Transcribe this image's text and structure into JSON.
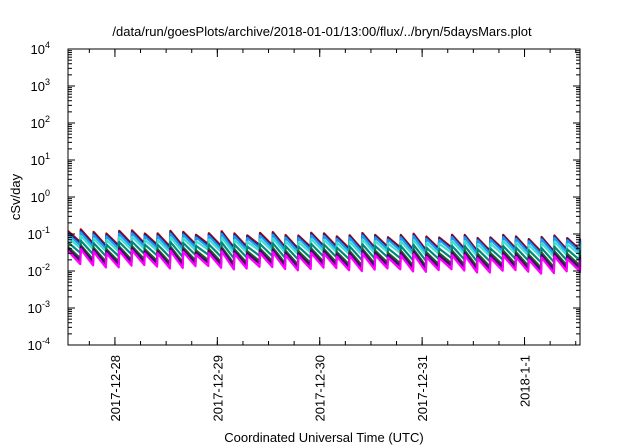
{
  "chart_data": {
    "type": "line",
    "title": "/data/run/goesPlots/archive/2018-01-01/13:00/flux/../bryn/5daysMars.plot",
    "xlabel": "Coordinated Universal Time (UTC)",
    "ylabel": "cSv/day",
    "yscale": "log",
    "ylim": [
      0.0001,
      10000
    ],
    "y_ticks": [
      {
        "base": "10",
        "exp": "-4"
      },
      {
        "base": "10",
        "exp": "-3"
      },
      {
        "base": "10",
        "exp": "-2"
      },
      {
        "base": "10",
        "exp": "-1"
      },
      {
        "base": "10",
        "exp": "0"
      },
      {
        "base": "10",
        "exp": "1"
      },
      {
        "base": "10",
        "exp": "2"
      },
      {
        "base": "10",
        "exp": "3"
      },
      {
        "base": "10",
        "exp": "4"
      }
    ],
    "xlim": [
      "2017-12-27 13:00",
      "2018-01-01 13:00"
    ],
    "x_ticks": [
      "2017-12-28",
      "2017-12-29",
      "2017-12-30",
      "2017-12-31",
      "2018-1-1"
    ],
    "grid": false,
    "legend": "none",
    "sawtooth_period_hours": 3,
    "series": [
      {
        "color": "#b00000",
        "high_start": 0.12,
        "high_end": 0.08,
        "low_start": 0.055,
        "low_end": 0.035
      },
      {
        "color": "#1a237e",
        "high_start": 0.11,
        "high_end": 0.075,
        "low_start": 0.05,
        "low_end": 0.032
      },
      {
        "color": "#2196f3",
        "high_start": 0.1,
        "high_end": 0.07,
        "low_start": 0.045,
        "low_end": 0.03
      },
      {
        "color": "#40e0d0",
        "high_start": 0.08,
        "high_end": 0.055,
        "low_start": 0.038,
        "low_end": 0.025
      },
      {
        "color": "#00897b",
        "high_start": 0.06,
        "high_end": 0.04,
        "low_start": 0.028,
        "low_end": 0.018
      },
      {
        "color": "#1b5e20",
        "high_start": 0.045,
        "high_end": 0.03,
        "low_start": 0.02,
        "low_end": 0.013
      },
      {
        "color": "#4a0072",
        "high_start": 0.04,
        "high_end": 0.026,
        "low_start": 0.017,
        "low_end": 0.011
      },
      {
        "color": "#ff00ff",
        "high_start": 0.035,
        "high_end": 0.022,
        "low_start": 0.014,
        "low_end": 0.009
      }
    ]
  }
}
